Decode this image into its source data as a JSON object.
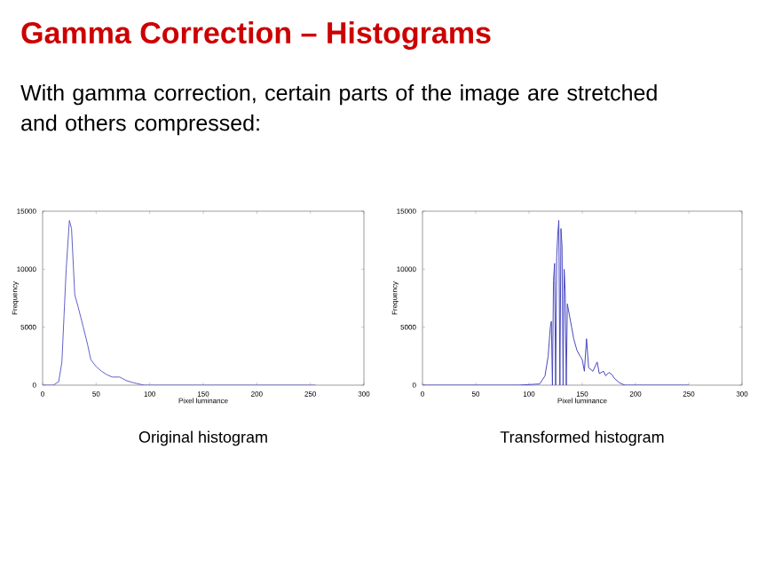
{
  "chart_data": [
    {
      "type": "line",
      "title": "Gamma Correction – Histograms",
      "subtitle": "With gamma correction, certain parts of the image are stretched and others compressed:",
      "xlabel": "Pixel luminance",
      "ylabel": "Frequency",
      "xlim": [
        0,
        300
      ],
      "xticks": [
        0,
        50,
        100,
        150,
        200,
        250,
        300
      ],
      "ylim": [
        0,
        15000
      ],
      "yticks": [
        0,
        5000,
        10000,
        15000
      ],
      "annotations": [
        "Original histogram"
      ],
      "series": [
        {
          "color": "#6060c8",
          "x": [
            0,
            10,
            15,
            18,
            20,
            22,
            25,
            27,
            30,
            33,
            38,
            42,
            45,
            50,
            55,
            60,
            65,
            72,
            78,
            85,
            95,
            110,
            150,
            200,
            255
          ],
          "values": [
            0,
            0,
            300,
            2000,
            6000,
            10000,
            14200,
            13500,
            7800,
            6800,
            5000,
            3500,
            2200,
            1600,
            1200,
            900,
            700,
            700,
            400,
            200,
            0,
            0,
            0,
            0,
            0
          ]
        }
      ]
    },
    {
      "type": "line",
      "xlabel": "Pixel luminance",
      "ylabel": "Frequency",
      "xlim": [
        0,
        300
      ],
      "xticks": [
        0,
        50,
        100,
        150,
        200,
        250,
        300
      ],
      "ylim": [
        0,
        15000
      ],
      "yticks": [
        0,
        5000,
        10000,
        15000
      ],
      "annotations": [
        "Transformed histogram"
      ],
      "series": [
        {
          "color": "#4848c0",
          "x": [
            0,
            90,
            110,
            115,
            118,
            120,
            121,
            122,
            123,
            124,
            125,
            126,
            127,
            128,
            129,
            130,
            131,
            132,
            133,
            134,
            135,
            136,
            137,
            140,
            142,
            145,
            148,
            150,
            152,
            154,
            156,
            160,
            164,
            166,
            170,
            172,
            175,
            178,
            180,
            185,
            190,
            200,
            250
          ],
          "values": [
            0,
            0,
            100,
            800,
            2500,
            5000,
            5500,
            0,
            9000,
            10500,
            0,
            11000,
            13000,
            14200,
            0,
            13500,
            12000,
            0,
            10000,
            8000,
            0,
            7000,
            6500,
            5000,
            4000,
            3000,
            2500,
            2200,
            1200,
            4000,
            1500,
            1200,
            2000,
            1000,
            1200,
            800,
            1100,
            900,
            600,
            200,
            0,
            0,
            0
          ]
        }
      ]
    }
  ]
}
